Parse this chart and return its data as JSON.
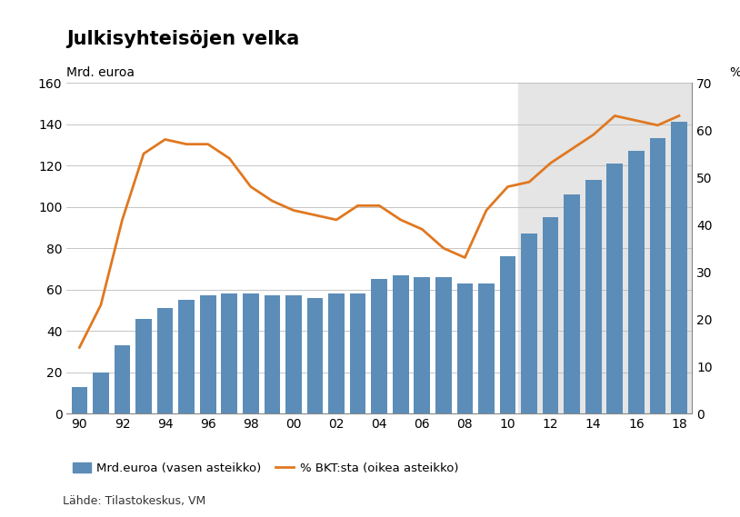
{
  "title": "Julkisyhteisöjen velka",
  "ylabel_left": "Mrd. euroa",
  "ylabel_right": "%",
  "source": "Lähde: Tilastokeskus, VM",
  "legend_bar": "Mrd.euroa (vasen asteikko)",
  "legend_line": "% BKT:sta (oikea asteikko)",
  "years": [
    1990,
    1991,
    1992,
    1993,
    1994,
    1995,
    1996,
    1997,
    1998,
    1999,
    2000,
    2001,
    2002,
    2003,
    2004,
    2005,
    2006,
    2007,
    2008,
    2009,
    2010,
    2011,
    2012,
    2013,
    2014,
    2015,
    2016,
    2017,
    2018
  ],
  "bar_values": [
    13,
    20,
    33,
    46,
    51,
    55,
    57,
    58,
    58,
    57,
    57,
    56,
    58,
    58,
    65,
    67,
    66,
    66,
    63,
    63,
    76,
    87,
    95,
    106,
    113,
    121,
    127,
    133,
    141
  ],
  "line_values_pct": [
    14,
    23,
    41,
    55,
    58,
    57,
    57,
    54,
    48,
    45,
    43,
    42,
    41,
    44,
    44,
    41,
    39,
    35,
    33,
    43,
    48,
    49,
    53,
    56,
    59,
    63,
    62,
    61,
    63
  ],
  "bar_color": "#5b8db8",
  "line_color": "#e07820",
  "background_color": "#ffffff",
  "shade_start_year": 2011,
  "shade_color": "#e5e5e5",
  "ylim_left": [
    0,
    160
  ],
  "ylim_right": [
    0,
    70
  ],
  "yticks_left": [
    0,
    20,
    40,
    60,
    80,
    100,
    120,
    140,
    160
  ],
  "yticks_right": [
    0,
    10,
    20,
    30,
    40,
    50,
    60,
    70
  ],
  "xtick_labels": [
    "90",
    "92",
    "94",
    "96",
    "98",
    "00",
    "02",
    "04",
    "06",
    "08",
    "10",
    "12",
    "14",
    "16",
    "18"
  ],
  "xtick_positions": [
    1990,
    1992,
    1994,
    1996,
    1998,
    2000,
    2002,
    2004,
    2006,
    2008,
    2010,
    2012,
    2014,
    2016,
    2018
  ]
}
